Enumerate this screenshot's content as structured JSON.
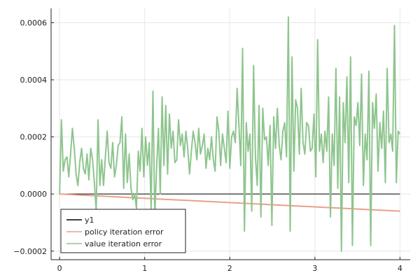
{
  "chart_data": {
    "type": "line",
    "xlim": [
      -0.1,
      4.12
    ],
    "ylim": [
      -0.00023,
      0.00065
    ],
    "grid": true,
    "legend_position": "bottom-left",
    "x_ticks": [
      0,
      1,
      2,
      3,
      4
    ],
    "x_tick_labels": [
      "0",
      "1",
      "2",
      "3",
      "4"
    ],
    "y_ticks": [
      -0.0002,
      0.0,
      0.0002,
      0.0004,
      0.0006
    ],
    "y_tick_labels": [
      "−0.0002",
      "0.0000",
      "0.0002",
      "0.0004",
      "0.0006"
    ],
    "series": [
      {
        "name": "y1",
        "color": "#000000",
        "x": [
          0,
          4
        ],
        "y": [
          0,
          0
        ]
      },
      {
        "name": "policy iteration error",
        "color": "#e9a08b",
        "x": [
          0,
          4
        ],
        "y": [
          0,
          -6e-05
        ]
      },
      {
        "name": "value iteration error",
        "color": "#8ec58e",
        "x_start": 0,
        "x_end": 4,
        "y": [
          0.0,
          0.00026,
          8e-05,
          0.00012,
          0.00013,
          6e-05,
          0.00014,
          0.00023,
          0.00016,
          7e-05,
          3e-05,
          0.00011,
          0.00016,
          9e-05,
          7e-05,
          0.00014,
          5e-05,
          0.00016,
          0.00012,
          4e-05,
          -6e-05,
          0.00026,
          3e-05,
          0.00012,
          3e-05,
          0.00013,
          0.00022,
          0.00011,
          9e-05,
          0.00018,
          6e-05,
          0.0001,
          0.00017,
          0.00018,
          0.00027,
          2e-05,
          0.00021,
          4e-05,
          0.00014,
          2e-05,
          -2e-05,
          0.0,
          -5e-05,
          0.00015,
          8e-05,
          0.00023,
          6e-05,
          0.0002,
          0.0001,
          0.00018,
          -5e-05,
          0.00036,
          -8e-05,
          9e-05,
          0.00023,
          0.0,
          0.00034,
          0.0001,
          0.00031,
          7e-05,
          0.00028,
          0.00016,
          0.00022,
          0.00011,
          0.00012,
          0.00026,
          0.00017,
          0.00021,
          0.00013,
          0.00022,
          0.00016,
          7e-05,
          0.00015,
          0.00022,
          0.00018,
          0.00012,
          0.00023,
          0.00014,
          0.00017,
          0.00021,
          9e-05,
          0.00016,
          0.00012,
          0.0002,
          0.00012,
          8e-05,
          0.00027,
          0.00022,
          0.0001,
          0.00021,
          0.00016,
          0.00011,
          0.00029,
          9e-05,
          0.0002,
          0.00022,
          0.00018,
          0.00037,
          0.00024,
          0.0001,
          0.00051,
          -0.00013,
          0.00025,
          0.00015,
          0.00021,
          -6e-05,
          0.00045,
          0.00013,
          3e-05,
          0.00031,
          -8e-05,
          0.0003,
          0.00019,
          0.0002,
          0.0001,
          0.00024,
          -0.00011,
          0.00027,
          0.00016,
          0.0003,
          0.00017,
          0.00012,
          0.00022,
          0.00025,
          0.00013,
          0.00062,
          -0.00013,
          0.00048,
          8e-05,
          0.00033,
          0.0003,
          0.00014,
          0.00037,
          0.00018,
          0.00014,
          0.00025,
          0.00024,
          0.00015,
          0.00016,
          0.00028,
          6e-05,
          0.00054,
          0.00015,
          0.00021,
          0.00011,
          0.00022,
          0.00015,
          0.00034,
          -8e-05,
          0.00021,
          0.0001,
          0.00044,
          2e-05,
          0.00034,
          -0.0002,
          0.00032,
          0.00018,
          0.00041,
          4e-05,
          0.00048,
          -0.00018,
          0.00027,
          0.00024,
          0.00032,
          0.00017,
          0.00042,
          3e-05,
          0.00021,
          0.00012,
          0.00043,
          -0.00018,
          0.00032,
          0.00023,
          0.00035,
          8e-05,
          0.00025,
          0.00016,
          0.00029,
          4e-05,
          0.00044,
          0.00018,
          0.00021,
          0.00015,
          0.00059,
          4e-05,
          0.00022,
          0.00021
        ]
      }
    ]
  }
}
